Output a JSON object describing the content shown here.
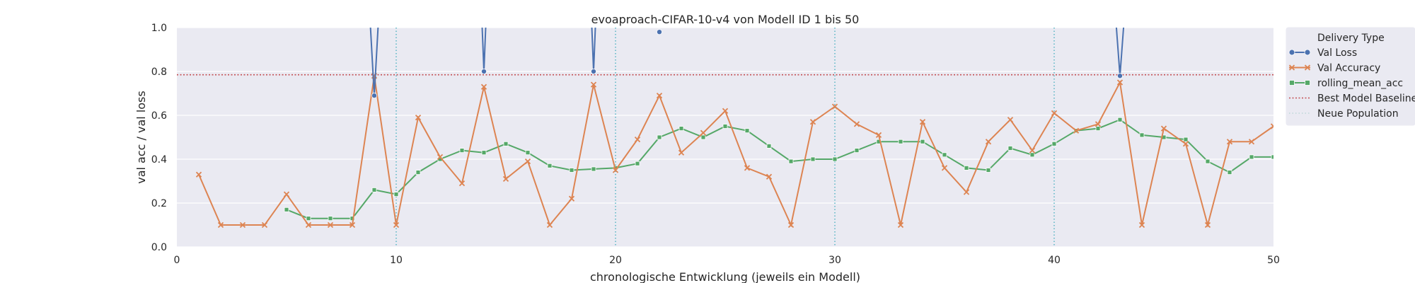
{
  "chart_data": {
    "type": "line",
    "title": "evoaproach-CIFAR-10-v4 von Modell ID 1 bis 50",
    "xlabel": "chronologische Entwicklung (jeweils ein Modell)",
    "ylabel": "val acc / val loss",
    "xlim": [
      0,
      50
    ],
    "ylim": [
      0,
      1
    ],
    "xticks": [
      0,
      10,
      20,
      30,
      40,
      50
    ],
    "yticks": [
      "0.0",
      "0.2",
      "0.4",
      "0.6",
      "0.8",
      "1.0"
    ],
    "grid": true,
    "legend": {
      "title": "Delivery Type",
      "placement": "right",
      "entries": [
        "Val Loss",
        "Val Accuracy",
        "rolling_mean_acc",
        "Best Model Baseline",
        "Neue Population"
      ]
    },
    "colors": {
      "val_loss": "#4c72b0",
      "val_accuracy": "#dd8452",
      "rolling_mean": "#55a868",
      "baseline": "#c44e52",
      "population": "#4ab0c0",
      "plot_bg": "#eaeaf2"
    },
    "series": [
      {
        "name": "Val Loss",
        "x": [
          8.8,
          9,
          9.2,
          13.9,
          14,
          14.1,
          18.9,
          19,
          19.1,
          22,
          42.8,
          43,
          43.2
        ],
        "y": [
          1.05,
          0.69,
          1.05,
          1.05,
          0.8,
          1.05,
          1.05,
          0.8,
          1.05,
          0.98,
          1.05,
          0.78,
          1.05
        ]
      },
      {
        "name": "Val Accuracy",
        "x": [
          1,
          2,
          3,
          4,
          5,
          6,
          7,
          8,
          9,
          10,
          11,
          12,
          13,
          14,
          15,
          16,
          17,
          18,
          19,
          20,
          21,
          22,
          23,
          24,
          25,
          26,
          27,
          28,
          29,
          30,
          31,
          32,
          33,
          34,
          35,
          36,
          37,
          38,
          39,
          40,
          41,
          42,
          43,
          44,
          45,
          46,
          47,
          48,
          49,
          50
        ],
        "y": [
          0.33,
          0.1,
          0.1,
          0.1,
          0.24,
          0.1,
          0.1,
          0.1,
          0.78,
          0.1,
          0.59,
          0.41,
          0.29,
          0.73,
          0.31,
          0.39,
          0.1,
          0.22,
          0.74,
          0.35,
          0.49,
          0.69,
          0.43,
          0.52,
          0.62,
          0.36,
          0.32,
          0.1,
          0.57,
          0.64,
          0.56,
          0.51,
          0.1,
          0.57,
          0.36,
          0.25,
          0.48,
          0.58,
          0.44,
          0.61,
          0.53,
          0.56,
          0.75,
          0.1,
          0.54,
          0.47,
          0.1,
          0.48,
          0.48,
          0.55
        ]
      },
      {
        "name": "rolling_mean_acc",
        "x": [
          5,
          6,
          7,
          8,
          9,
          10,
          11,
          12,
          13,
          14,
          15,
          16,
          17,
          18,
          19,
          20,
          21,
          22,
          23,
          24,
          25,
          26,
          27,
          28,
          29,
          30,
          31,
          32,
          33,
          34,
          35,
          36,
          37,
          38,
          39,
          40,
          41,
          42,
          43,
          44,
          45,
          46,
          47,
          48,
          49,
          50
        ],
        "y": [
          0.17,
          0.13,
          0.13,
          0.13,
          0.26,
          0.24,
          0.34,
          0.4,
          0.44,
          0.43,
          0.47,
          0.43,
          0.37,
          0.35,
          0.355,
          0.36,
          0.38,
          0.5,
          0.54,
          0.5,
          0.55,
          0.53,
          0.46,
          0.39,
          0.4,
          0.4,
          0.44,
          0.48,
          0.48,
          0.48,
          0.42,
          0.36,
          0.35,
          0.45,
          0.42,
          0.47,
          0.53,
          0.54,
          0.58,
          0.51,
          0.5,
          0.49,
          0.39,
          0.34,
          0.41,
          0.41
        ]
      },
      {
        "name": "Best Model Baseline",
        "y": 0.785
      },
      {
        "name": "Neue Population",
        "x": [
          10,
          20,
          30,
          40
        ]
      }
    ]
  }
}
